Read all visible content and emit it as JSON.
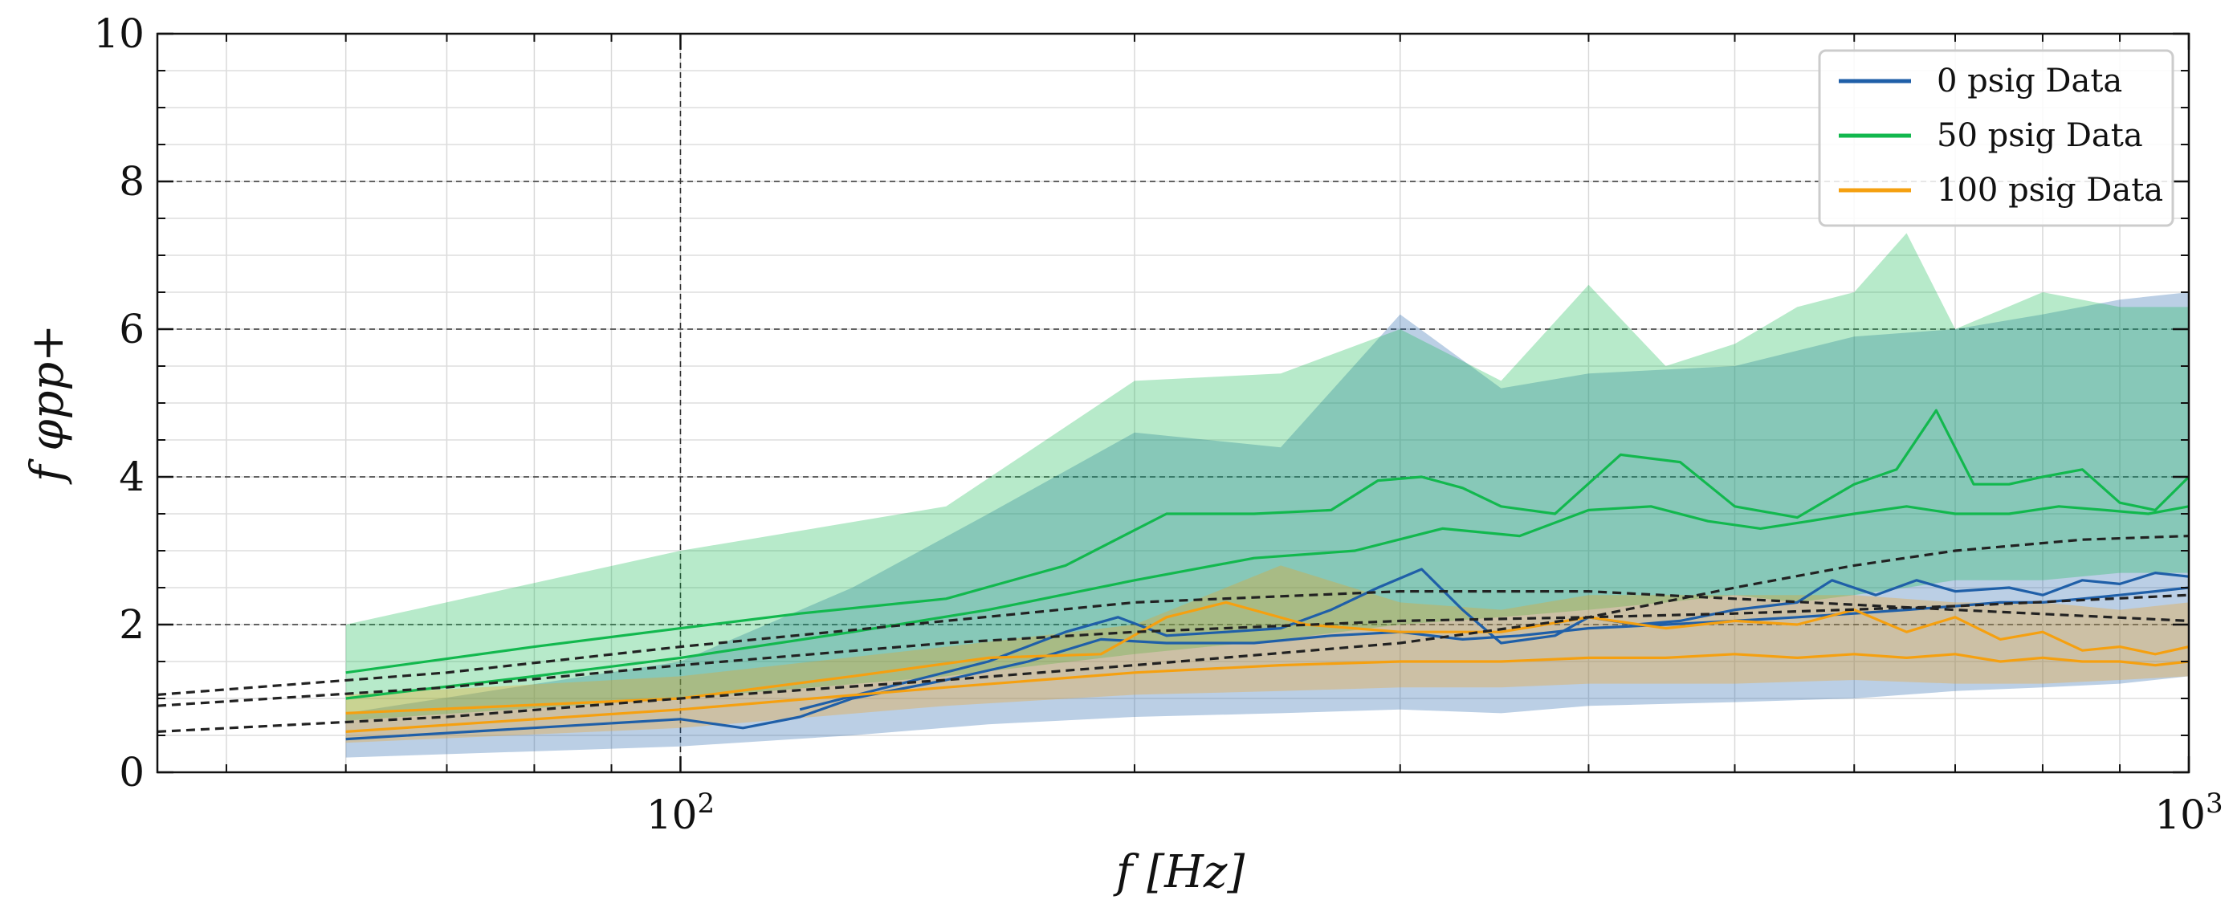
{
  "chart_data": {
    "type": "line",
    "x_scale": "log",
    "xlim": [
      45,
      1000
    ],
    "ylim": [
      0,
      10
    ],
    "xlabel": "f [Hz]",
    "ylabel": "f φpp+",
    "x_ticks": [
      {
        "value": 100,
        "base": "10",
        "exp": "2"
      },
      {
        "value": 1000,
        "base": "10",
        "exp": "3"
      }
    ],
    "y_ticks": [
      0,
      2,
      4,
      6,
      8,
      10
    ],
    "grid": true,
    "legend_position": "top-right",
    "legend": [
      "0 psig Data",
      "50 psig Data",
      "100 psig Data"
    ],
    "colors": {
      "0 psig Data": "#1f5fa8",
      "50 psig Data": "#12b84e",
      "100 psig Data": "#f5a010",
      "model_curves": "#222222"
    },
    "series": [
      {
        "name": "0 psig Data",
        "color": "#1f5fa8",
        "lines": [
          {
            "x": [
              60,
              100,
              110,
              120,
              130,
              150,
              170,
              190,
              210,
              240,
              270,
              300,
              330,
              360,
              400,
              450,
              500,
              550,
              600,
              650,
              700,
              750,
              800,
              850,
              900,
              950,
              1000
            ],
            "y": [
              0.45,
              0.72,
              0.6,
              0.75,
              1.0,
              1.25,
              1.5,
              1.8,
              1.75,
              1.75,
              1.85,
              1.9,
              1.8,
              1.85,
              1.95,
              2.0,
              2.05,
              2.1,
              2.15,
              2.2,
              2.25,
              2.3,
              2.3,
              2.35,
              2.4,
              2.45,
              2.5
            ]
          },
          {
            "x": [
              120,
              140,
              160,
              180,
              195,
              210,
              230,
              250,
              270,
              290,
              310,
              330,
              350,
              380,
              400,
              430,
              460,
              500,
              550,
              580,
              620,
              660,
              700,
              760,
              800,
              850,
              900,
              950,
              1000
            ],
            "y": [
              0.85,
              1.2,
              1.5,
              1.9,
              2.1,
              1.85,
              1.9,
              1.95,
              2.2,
              2.5,
              2.75,
              2.2,
              1.75,
              1.85,
              2.1,
              2.0,
              2.05,
              2.2,
              2.3,
              2.6,
              2.4,
              2.6,
              2.45,
              2.5,
              2.4,
              2.6,
              2.55,
              2.7,
              2.65
            ]
          }
        ],
        "band": {
          "x": [
            60,
            100,
            130,
            160,
            200,
            250,
            300,
            350,
            400,
            500,
            600,
            700,
            800,
            900,
            1000
          ],
          "lower": [
            0.2,
            0.35,
            0.5,
            0.65,
            0.75,
            0.8,
            0.85,
            0.8,
            0.9,
            0.95,
            1.0,
            1.1,
            1.15,
            1.2,
            1.3
          ],
          "upper": [
            0.8,
            1.5,
            2.5,
            3.5,
            4.6,
            4.4,
            6.2,
            5.2,
            5.4,
            5.5,
            5.9,
            6.0,
            6.2,
            6.4,
            6.5
          ]
        }
      },
      {
        "name": "50 psig Data",
        "color": "#12b84e",
        "lines": [
          {
            "x": [
              60,
              80,
              100,
              120,
              150,
              180,
              210,
              240,
              270,
              290,
              310,
              330,
              350,
              380,
              420,
              460,
              500,
              550,
              600,
              640,
              680,
              720,
              760,
              800,
              850,
              900,
              950,
              1000
            ],
            "y": [
              1.35,
              1.7,
              1.95,
              2.15,
              2.35,
              2.8,
              3.5,
              3.5,
              3.55,
              3.95,
              4.0,
              3.85,
              3.6,
              3.5,
              4.3,
              4.2,
              3.6,
              3.45,
              3.9,
              4.1,
              4.9,
              3.9,
              3.9,
              4.0,
              4.1,
              3.65,
              3.55,
              4.0
            ]
          },
          {
            "x": [
              60,
              80,
              100,
              130,
              160,
              200,
              240,
              280,
              320,
              360,
              400,
              440,
              480,
              520,
              560,
              600,
              650,
              700,
              760,
              820,
              880,
              940,
              1000
            ],
            "y": [
              1.0,
              1.3,
              1.55,
              1.9,
              2.2,
              2.6,
              2.9,
              3.0,
              3.3,
              3.2,
              3.55,
              3.6,
              3.4,
              3.3,
              3.4,
              3.5,
              3.6,
              3.5,
              3.5,
              3.6,
              3.55,
              3.5,
              3.6
            ]
          }
        ],
        "band": {
          "x": [
            60,
            100,
            150,
            200,
            250,
            300,
            350,
            400,
            450,
            500,
            550,
            600,
            650,
            700,
            800,
            900,
            1000
          ],
          "lower": [
            0.7,
            1.0,
            1.3,
            1.6,
            1.8,
            2.0,
            2.1,
            2.2,
            2.3,
            2.4,
            2.3,
            2.4,
            2.5,
            2.6,
            2.6,
            2.7,
            2.7
          ],
          "upper": [
            2.0,
            3.0,
            3.6,
            5.3,
            5.4,
            6.0,
            5.3,
            6.6,
            5.5,
            5.8,
            6.3,
            6.5,
            7.3,
            6.0,
            6.5,
            6.3,
            6.3
          ]
        }
      },
      {
        "name": "100 psig Data",
        "color": "#f5a010",
        "lines": [
          {
            "x": [
              60,
              100,
              130,
              160,
              190,
              210,
              230,
              260,
              300,
              350,
              400,
              450,
              500,
              550,
              600,
              650,
              700,
              750,
              800,
              850,
              900,
              950,
              1000
            ],
            "y": [
              0.8,
              1.0,
              1.3,
              1.55,
              1.6,
              2.1,
              2.3,
              2.0,
              1.9,
              1.9,
              2.1,
              1.95,
              2.05,
              2.0,
              2.2,
              1.9,
              2.1,
              1.8,
              1.9,
              1.65,
              1.7,
              1.6,
              1.7
            ]
          },
          {
            "x": [
              60,
              100,
              150,
              200,
              250,
              300,
              350,
              400,
              450,
              500,
              550,
              600,
              650,
              700,
              750,
              800,
              850,
              900,
              950,
              1000
            ],
            "y": [
              0.55,
              0.85,
              1.15,
              1.35,
              1.45,
              1.5,
              1.5,
              1.55,
              1.55,
              1.6,
              1.55,
              1.6,
              1.55,
              1.6,
              1.5,
              1.55,
              1.5,
              1.5,
              1.45,
              1.5
            ]
          }
        ],
        "band": {
          "x": [
            60,
            100,
            150,
            200,
            250,
            300,
            350,
            400,
            500,
            600,
            700,
            800,
            900,
            1000
          ],
          "lower": [
            0.4,
            0.6,
            0.9,
            1.05,
            1.1,
            1.15,
            1.15,
            1.2,
            1.2,
            1.25,
            1.2,
            1.2,
            1.25,
            1.3
          ],
          "upper": [
            1.05,
            1.3,
            1.7,
            2.0,
            2.8,
            2.3,
            2.2,
            2.4,
            2.4,
            2.4,
            2.3,
            2.3,
            2.2,
            2.3
          ]
        }
      }
    ],
    "model_curves": [
      {
        "x": [
          45,
          70,
          100,
          150,
          200,
          300,
          400,
          500,
          700,
          1000
        ],
        "y": [
          1.05,
          1.35,
          1.7,
          2.05,
          2.3,
          2.45,
          2.45,
          2.35,
          2.2,
          2.05
        ]
      },
      {
        "x": [
          45,
          70,
          100,
          150,
          200,
          300,
          400,
          500,
          700,
          1000
        ],
        "y": [
          0.9,
          1.15,
          1.45,
          1.75,
          1.9,
          2.05,
          2.1,
          2.15,
          2.25,
          2.4
        ]
      },
      {
        "x": [
          45,
          70,
          100,
          150,
          200,
          300,
          400,
          500,
          600,
          700,
          850,
          1000
        ],
        "y": [
          0.55,
          0.75,
          1.0,
          1.25,
          1.45,
          1.75,
          2.1,
          2.5,
          2.8,
          3.0,
          3.15,
          3.2
        ]
      }
    ]
  }
}
